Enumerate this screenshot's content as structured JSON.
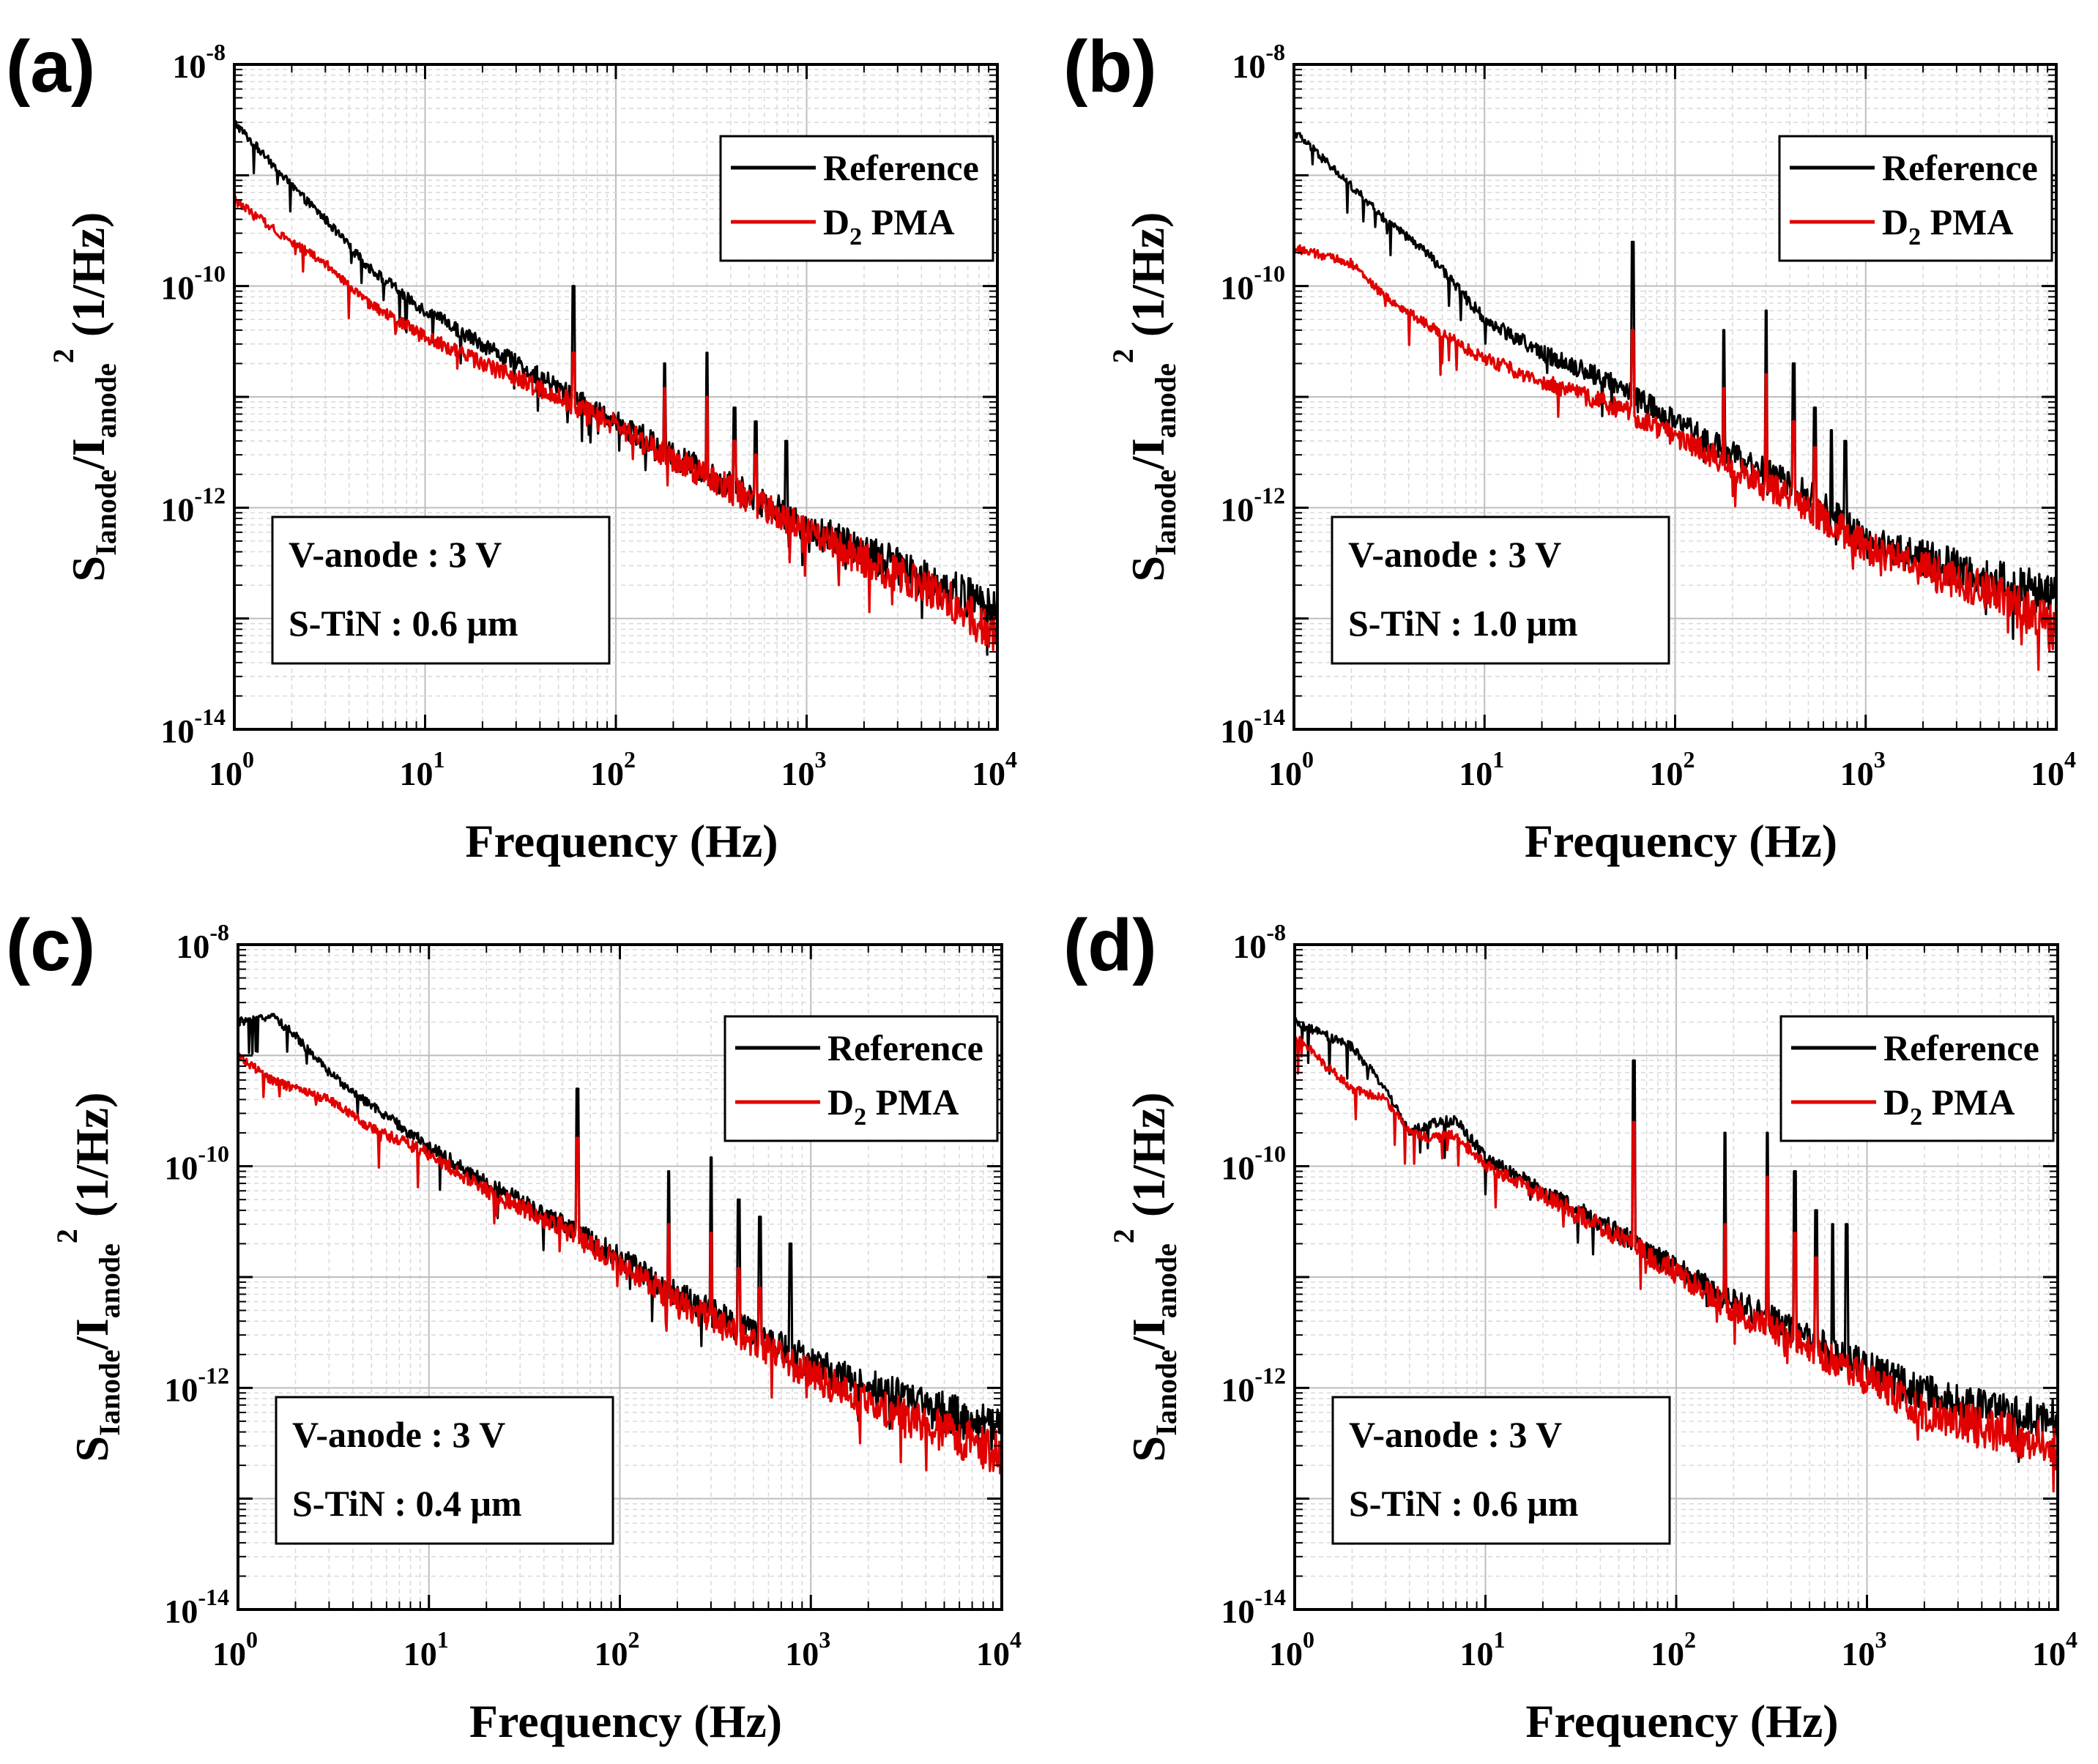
{
  "figure": {
    "x_axis_title": "Frequency (Hz)",
    "y_axis_title": {
      "s": "S",
      "s_sub": "Ianode",
      "slash_i": "/I",
      "i_sub": "anode",
      "i_sup": "2",
      "units": "(1/Hz)"
    },
    "x_ticks": [
      {
        "base": "10",
        "exp": "0"
      },
      {
        "base": "10",
        "exp": "1"
      },
      {
        "base": "10",
        "exp": "2"
      },
      {
        "base": "10",
        "exp": "3"
      },
      {
        "base": "10",
        "exp": "4"
      }
    ],
    "y_ticks": [
      {
        "base": "10",
        "exp": "-8"
      },
      {
        "base": "10",
        "exp": "-10"
      },
      {
        "base": "10",
        "exp": "-12"
      },
      {
        "base": "10",
        "exp": "-14"
      }
    ],
    "legend": {
      "reference": "Reference",
      "d2_base": "D",
      "d2_sub": "2",
      "d2_rest": " PMA"
    },
    "colors": {
      "reference": "#000000",
      "d2pma": "#e00000"
    }
  },
  "chart_data": [
    {
      "type": "line",
      "panel": "(a)",
      "xlabel": "Frequency (Hz)",
      "ylabel": "SIanode/Ianode2 (1/Hz)",
      "xscale": "log",
      "yscale": "log",
      "xlim": [
        1,
        10000
      ],
      "ylim": [
        1e-14,
        1e-08
      ],
      "grid": true,
      "legend_position": "top-right",
      "annotation": {
        "line1": "V-anode : 3 V",
        "line2": "S-TiN : 0.6 μm"
      },
      "series": [
        {
          "name": "Reference",
          "color": "#000000",
          "points": [
            [
              1,
              3e-09
            ],
            [
              2,
              8e-10
            ],
            [
              3,
              4e-10
            ],
            [
              5,
              1.5e-10
            ],
            [
              10,
              6e-11
            ],
            [
              20,
              3e-11
            ],
            [
              50,
              1.2e-11
            ],
            [
              100,
              6e-12
            ],
            [
              200,
              3e-12
            ],
            [
              500,
              1.3e-12
            ],
            [
              1000,
              7e-13
            ],
            [
              2000,
              4e-13
            ],
            [
              5000,
              2e-13
            ],
            [
              10000,
              1.2e-13
            ]
          ],
          "peaks": [
            [
              60,
              1e-10
            ],
            [
              180,
              2e-11
            ],
            [
              300,
              2.5e-11
            ],
            [
              420,
              8e-12
            ],
            [
              540,
              6e-12
            ],
            [
              780,
              4e-12
            ]
          ]
        },
        {
          "name": "D2 PMA",
          "color": "#e00000",
          "points": [
            [
              1,
              6e-10
            ],
            [
              2,
              2.5e-10
            ],
            [
              3,
              1.6e-10
            ],
            [
              5,
              7e-11
            ],
            [
              10,
              3.5e-11
            ],
            [
              20,
              2e-11
            ],
            [
              50,
              1e-11
            ],
            [
              100,
              5.5e-12
            ],
            [
              200,
              2.7e-12
            ],
            [
              500,
              1.2e-12
            ],
            [
              1000,
              6e-13
            ],
            [
              2000,
              3.5e-13
            ],
            [
              5000,
              1.6e-13
            ],
            [
              10000,
              7e-14
            ]
          ],
          "peaks": [
            [
              60,
              2.5e-11
            ],
            [
              180,
              1.2e-11
            ],
            [
              300,
              1e-11
            ],
            [
              420,
              4e-12
            ],
            [
              540,
              3e-12
            ]
          ]
        }
      ]
    },
    {
      "type": "line",
      "panel": "(b)",
      "xlabel": "Frequency (Hz)",
      "ylabel": "SIanode/Ianode2 (1/Hz)",
      "xscale": "log",
      "yscale": "log",
      "xlim": [
        1,
        10000
      ],
      "ylim": [
        1e-14,
        1e-08
      ],
      "grid": true,
      "legend_position": "top-right",
      "annotation": {
        "line1": "V-anode : 3 V",
        "line2": "S-TiN : 1.0 μm"
      },
      "series": [
        {
          "name": "Reference",
          "color": "#000000",
          "points": [
            [
              1,
              2.5e-09
            ],
            [
              2,
              8e-10
            ],
            [
              3,
              4e-10
            ],
            [
              5,
              2e-10
            ],
            [
              10,
              5e-11
            ],
            [
              20,
              2.5e-11
            ],
            [
              50,
              1.3e-11
            ],
            [
              100,
              6e-12
            ],
            [
              200,
              3e-12
            ],
            [
              500,
              1.3e-12
            ],
            [
              1000,
              5e-13
            ],
            [
              2000,
              3.5e-13
            ],
            [
              5000,
              2.2e-13
            ],
            [
              10000,
              1.6e-13
            ]
          ],
          "peaks": [
            [
              60,
              2.5e-10
            ],
            [
              180,
              4e-11
            ],
            [
              300,
              6e-11
            ],
            [
              420,
              2e-11
            ],
            [
              540,
              8e-12
            ],
            [
              660,
              5e-12
            ],
            [
              780,
              4e-12
            ]
          ]
        },
        {
          "name": "D2 PMA",
          "color": "#e00000",
          "points": [
            [
              1,
              2.2e-10
            ],
            [
              2,
              1.6e-10
            ],
            [
              3,
              8e-11
            ],
            [
              5,
              4.5e-11
            ],
            [
              10,
              2.2e-11
            ],
            [
              20,
              1.4e-11
            ],
            [
              50,
              8e-12
            ],
            [
              100,
              4.5e-12
            ],
            [
              200,
              2.3e-12
            ],
            [
              500,
              1e-12
            ],
            [
              1000,
              4.5e-13
            ],
            [
              2000,
              2.8e-13
            ],
            [
              5000,
              1.6e-13
            ],
            [
              10000,
              8e-14
            ]
          ],
          "peaks": [
            [
              60,
              4e-11
            ],
            [
              180,
              1.2e-11
            ],
            [
              300,
              1.6e-11
            ],
            [
              420,
              6e-12
            ],
            [
              540,
              3.5e-12
            ]
          ]
        }
      ]
    },
    {
      "type": "line",
      "panel": "(c)",
      "xlabel": "Frequency (Hz)",
      "ylabel": "SIanode/Ianode2 (1/Hz)",
      "xscale": "log",
      "yscale": "log",
      "xlim": [
        1,
        10000
      ],
      "ylim": [
        1e-14,
        1e-08
      ],
      "grid": true,
      "legend_position": "top-right",
      "annotation": {
        "line1": "V-anode : 3 V",
        "line2": "S-TiN : 0.4 μm"
      },
      "series": [
        {
          "name": "Reference",
          "color": "#000000",
          "points": [
            [
              1,
              2e-09
            ],
            [
              1.5,
              2.3e-09
            ],
            [
              2,
              1.5e-09
            ],
            [
              3,
              7e-10
            ],
            [
              5,
              3.5e-10
            ],
            [
              10,
              1.5e-10
            ],
            [
              20,
              7e-11
            ],
            [
              50,
              3e-11
            ],
            [
              100,
              1.5e-11
            ],
            [
              200,
              7e-12
            ],
            [
              500,
              3e-12
            ],
            [
              1000,
              1.7e-12
            ],
            [
              2000,
              1e-12
            ],
            [
              5000,
              6e-13
            ],
            [
              10000,
              4e-13
            ]
          ],
          "peaks": [
            [
              60,
              5e-10
            ],
            [
              180,
              9e-11
            ],
            [
              300,
              1.2e-10
            ],
            [
              420,
              5e-11
            ],
            [
              540,
              3.5e-11
            ],
            [
              780,
              2e-11
            ]
          ]
        },
        {
          "name": "D2 PMA",
          "color": "#e00000",
          "points": [
            [
              1,
              1e-09
            ],
            [
              1.5,
              6e-10
            ],
            [
              2,
              5e-10
            ],
            [
              3,
              4e-10
            ],
            [
              5,
              2.2e-10
            ],
            [
              10,
              1.3e-10
            ],
            [
              20,
              6e-11
            ],
            [
              50,
              2.8e-11
            ],
            [
              100,
              1.3e-11
            ],
            [
              200,
              6e-12
            ],
            [
              500,
              2.6e-12
            ],
            [
              1000,
              1.3e-12
            ],
            [
              2000,
              7e-13
            ],
            [
              5000,
              4e-13
            ],
            [
              10000,
              2.5e-13
            ]
          ],
          "peaks": [
            [
              60,
              1.8e-10
            ],
            [
              180,
              3e-11
            ],
            [
              300,
              2.5e-11
            ],
            [
              420,
              1.2e-11
            ],
            [
              540,
              8e-12
            ]
          ]
        }
      ]
    },
    {
      "type": "line",
      "panel": "(d)",
      "xlabel": "Frequency (Hz)",
      "ylabel": "SIanode/Ianode2 (1/Hz)",
      "xscale": "log",
      "yscale": "log",
      "xlim": [
        1,
        10000
      ],
      "ylim": [
        1e-14,
        1e-08
      ],
      "grid": true,
      "legend_position": "top-right",
      "annotation": {
        "line1": "V-anode : 3 V",
        "line2": "S-TiN : 0.6 μm"
      },
      "series": [
        {
          "name": "Reference",
          "color": "#000000",
          "points": [
            [
              1,
              2e-09
            ],
            [
              2,
              1.2e-09
            ],
            [
              3,
              5e-10
            ],
            [
              4,
              2e-10
            ],
            [
              5,
              2.4e-10
            ],
            [
              7,
              2.6e-10
            ],
            [
              10,
              1.2e-10
            ],
            [
              20,
              6e-11
            ],
            [
              50,
              2.5e-11
            ],
            [
              100,
              1.2e-11
            ],
            [
              200,
              6e-12
            ],
            [
              500,
              2.8e-12
            ],
            [
              1000,
              1.5e-12
            ],
            [
              2000,
              9e-13
            ],
            [
              5000,
              6e-13
            ],
            [
              10000,
              5e-13
            ]
          ],
          "peaks": [
            [
              60,
              9e-10
            ],
            [
              180,
              2e-10
            ],
            [
              300,
              2e-10
            ],
            [
              420,
              9e-11
            ],
            [
              540,
              4e-11
            ],
            [
              660,
              3e-11
            ],
            [
              780,
              3e-11
            ]
          ]
        },
        {
          "name": "D2 PMA",
          "color": "#e00000",
          "points": [
            [
              1,
              1.5e-09
            ],
            [
              2,
              5e-10
            ],
            [
              3,
              4e-10
            ],
            [
              4,
              2e-10
            ],
            [
              5,
              1.8e-10
            ],
            [
              7,
              1.9e-10
            ],
            [
              10,
              1e-10
            ],
            [
              20,
              5.5e-11
            ],
            [
              50,
              2.3e-11
            ],
            [
              100,
              1.1e-11
            ],
            [
              200,
              5e-12
            ],
            [
              500,
              2.3e-12
            ],
            [
              1000,
              1.2e-12
            ],
            [
              2000,
              6e-13
            ],
            [
              5000,
              4e-13
            ],
            [
              10000,
              3e-13
            ]
          ],
          "peaks": [
            [
              60,
              2.5e-10
            ],
            [
              180,
              3e-11
            ],
            [
              300,
              8e-11
            ],
            [
              420,
              2.5e-11
            ],
            [
              540,
              1.5e-11
            ]
          ]
        }
      ]
    }
  ]
}
